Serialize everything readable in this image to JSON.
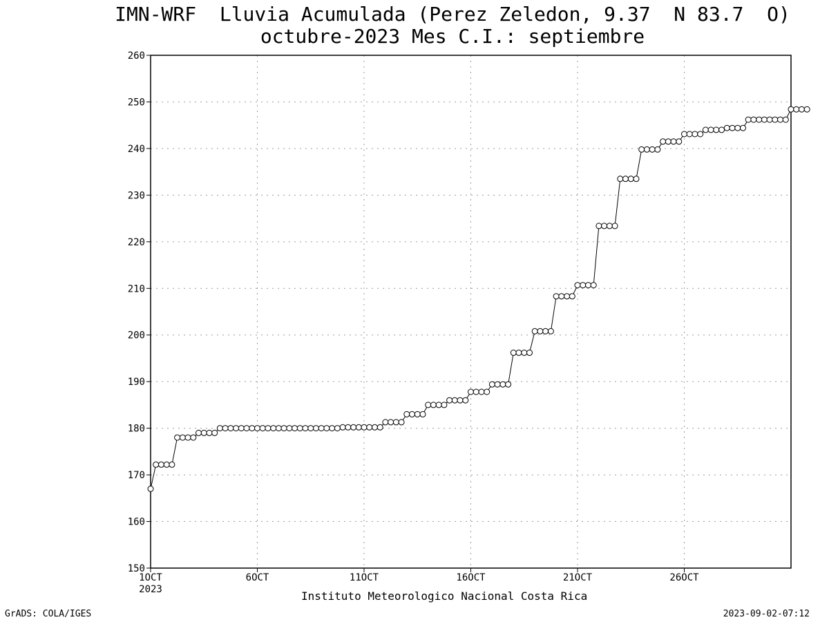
{
  "chart_data": {
    "type": "line",
    "title": "IMN-WRF  Lluvia Acumulada (Perez Zeledon, 9.37  N 83.7  O)",
    "subtitle": "octubre-2023 Mes C.I.: septiembre",
    "xlabel": "Instituto Meteorologico Nacional Costa Rica",
    "ylabel": "",
    "ylim": [
      150,
      260
    ],
    "yticks": [
      150,
      160,
      170,
      180,
      190,
      200,
      210,
      220,
      230,
      240,
      250,
      260
    ],
    "xlim": [
      1,
      31
    ],
    "xticks": [
      {
        "value": 1,
        "label": "1OCT",
        "sublabel": "2023"
      },
      {
        "value": 6,
        "label": "6OCT"
      },
      {
        "value": 11,
        "label": "11OCT"
      },
      {
        "value": 16,
        "label": "16OCT"
      },
      {
        "value": 21,
        "label": "21OCT"
      },
      {
        "value": 26,
        "label": "26OCT"
      }
    ],
    "grid": true,
    "marker": "open-circle",
    "series": [
      {
        "name": "",
        "x_step_days": 0.25,
        "values": [
          167.0,
          172.2,
          172.2,
          172.2,
          172.2,
          178.0,
          178.0,
          178.0,
          178.0,
          179.0,
          179.0,
          179.0,
          179.0,
          180.0,
          180.0,
          180.0,
          180.0,
          180.0,
          180.0,
          180.0,
          180.0,
          180.0,
          180.0,
          180.0,
          180.0,
          180.0,
          180.0,
          180.0,
          180.0,
          180.0,
          180.0,
          180.0,
          180.0,
          180.0,
          180.0,
          180.0,
          180.2,
          180.2,
          180.2,
          180.2,
          180.2,
          180.2,
          180.2,
          180.2,
          181.3,
          181.3,
          181.3,
          181.3,
          183.0,
          183.0,
          183.0,
          183.0,
          185.0,
          185.0,
          185.0,
          185.0,
          186.0,
          186.0,
          186.0,
          186.0,
          187.8,
          187.8,
          187.8,
          187.8,
          189.4,
          189.4,
          189.4,
          189.4,
          196.2,
          196.2,
          196.2,
          196.2,
          200.8,
          200.8,
          200.8,
          200.8,
          208.3,
          208.3,
          208.3,
          208.3,
          210.7,
          210.7,
          210.7,
          210.7,
          223.4,
          223.4,
          223.4,
          223.4,
          233.5,
          233.5,
          233.5,
          233.5,
          239.8,
          239.8,
          239.8,
          239.8,
          241.5,
          241.5,
          241.5,
          241.5,
          243.1,
          243.1,
          243.1,
          243.1,
          244.0,
          244.0,
          244.0,
          244.0,
          244.4,
          244.4,
          244.4,
          244.4,
          246.2,
          246.2,
          246.2,
          246.2,
          246.2,
          246.2,
          246.2,
          246.2,
          248.4,
          248.4,
          248.4,
          248.4
        ]
      }
    ]
  },
  "footer": {
    "left": "GrADS: COLA/IGES",
    "right": "2023-09-02-07:12"
  }
}
